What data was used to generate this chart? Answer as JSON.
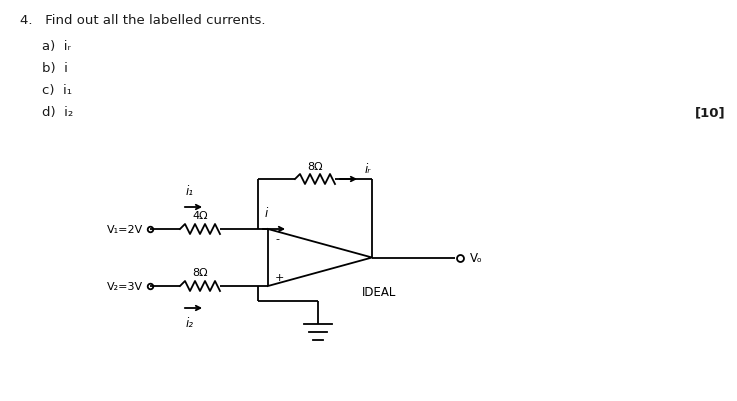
{
  "title_text": "4.   Find out all the labelled currents.",
  "items": [
    "a)  iᵣ",
    "b)  i",
    "c)  i₁",
    "d)  i₂"
  ],
  "marks": "[10]",
  "bg_color": "#ffffff",
  "text_color": "#1a1a1a",
  "circuit": {
    "V1_label": "V₁=2V",
    "V2_label": "V₂=3V",
    "R1_label": "4Ω",
    "R2_label": "8Ω",
    "Rf_label": "8Ω",
    "i1_label": "i₁",
    "i2_label": "i₂",
    "i_label": "i",
    "if_label": "iᵣ",
    "Vo_label": "Vₒ",
    "neg_label": "-",
    "pos_label": "+",
    "ideal_label": "IDEAL"
  }
}
